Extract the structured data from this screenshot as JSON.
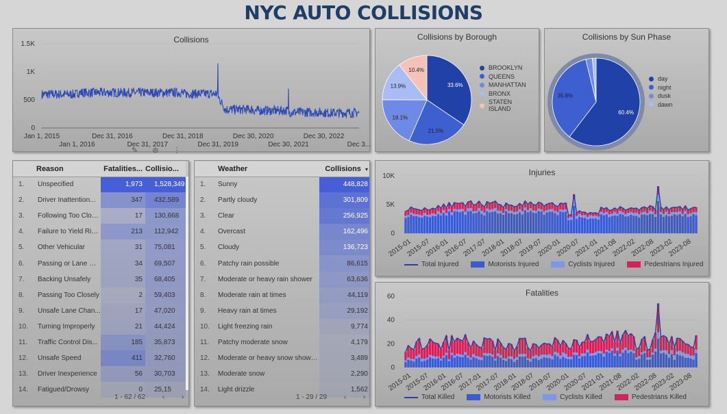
{
  "page_title": "NYC AUTO COLLISIONS",
  "colors": {
    "line": "#2e4bb5",
    "motorists": "#3b5bd0",
    "cyclists": "#7d97e8",
    "pedestrians": "#d0245a"
  },
  "collisions": {
    "title": "Collisions",
    "y_ticks": [
      "1.5K",
      "1K",
      "500",
      "0"
    ],
    "x_ticks_top": [
      "Jan 1, 2015",
      "Dec 31, 2016",
      "Dec 31, 2018",
      "Dec 30, 2020",
      "Dec 30, 2022"
    ],
    "x_ticks_bottom": [
      "Jan 1, 2016",
      "Dec 31, 2017",
      "Dec 31, 2019",
      "Dec 30, 2021",
      "Dec 3..."
    ]
  },
  "borough": {
    "title": "Collisions by Borough",
    "labels": [
      "BROOKLYN",
      "QUEENS",
      "MANHATTAN",
      "BRONX",
      "STATEN ISLAND"
    ],
    "legend_lines": [
      [
        "BROOKLYN"
      ],
      [
        "QUEENS"
      ],
      [
        "MANHATTAN"
      ],
      [
        "BRONX"
      ],
      [
        "STATEN",
        "ISLAND"
      ]
    ],
    "pct": [
      "33.6%",
      "21.5%",
      "18.1%",
      "13.9%",
      "10.4%"
    ]
  },
  "sun": {
    "title": "Collisions by Sun Phase",
    "labels": [
      "day",
      "night",
      "dusk",
      "dawn"
    ],
    "pct": [
      "60.4%",
      "35.8%"
    ]
  },
  "reasons": {
    "headers": [
      "Reason",
      "Fatalities...",
      "Collisio..."
    ],
    "rows": [
      {
        "i": "1.",
        "r": "Unspecified",
        "f": "1,973",
        "c": "1,528,349"
      },
      {
        "i": "2.",
        "r": "Driver Inattention...",
        "f": "347",
        "c": "432,589"
      },
      {
        "i": "3.",
        "r": "Following Too Clos...",
        "f": "17",
        "c": "130,668"
      },
      {
        "i": "4.",
        "r": "Failure to Yield Rig...",
        "f": "213",
        "c": "112,942"
      },
      {
        "i": "5.",
        "r": "Other Vehicular",
        "f": "31",
        "c": "75,081"
      },
      {
        "i": "6.",
        "r": "Passing or Lane Us...",
        "f": "34",
        "c": "69,507"
      },
      {
        "i": "7.",
        "r": "Backing Unsafely",
        "f": "35",
        "c": "68,405"
      },
      {
        "i": "8.",
        "r": "Passing Too Closely",
        "f": "2",
        "c": "59,403"
      },
      {
        "i": "9.",
        "r": "Unsafe Lane Chan...",
        "f": "17",
        "c": "47,020"
      },
      {
        "i": "10.",
        "r": "Turning Improperly",
        "f": "21",
        "c": "44,424"
      },
      {
        "i": "11.",
        "r": "Traffic Control Dis...",
        "f": "185",
        "c": "35,873"
      },
      {
        "i": "12.",
        "r": "Unsafe Speed",
        "f": "411",
        "c": "32,760"
      },
      {
        "i": "13.",
        "r": "Driver Inexperience",
        "f": "56",
        "c": "30,703"
      },
      {
        "i": "14.",
        "r": "Fatigued/Drowsy",
        "f": "0",
        "c": "25,15"
      }
    ],
    "pager": "1 - 62 / 62"
  },
  "weather": {
    "headers": [
      "Weather",
      "Collisions"
    ],
    "sort_icon": "▾",
    "rows": [
      {
        "i": "1.",
        "w": "Sunny",
        "c": "448,828"
      },
      {
        "i": "2.",
        "w": "Partly cloudy",
        "c": "301,809"
      },
      {
        "i": "3.",
        "w": "Clear",
        "c": "256,925"
      },
      {
        "i": "4.",
        "w": "Overcast",
        "c": "162,496"
      },
      {
        "i": "5.",
        "w": "Cloudy",
        "c": "136,723"
      },
      {
        "i": "6.",
        "w": "Patchy rain possible",
        "c": "86,615"
      },
      {
        "i": "7.",
        "w": "Moderate or heavy rain shower",
        "c": "63,636"
      },
      {
        "i": "8.",
        "w": "Moderate rain at times",
        "c": "44,119"
      },
      {
        "i": "9.",
        "w": "Heavy rain at times",
        "c": "29,192"
      },
      {
        "i": "10.",
        "w": "Light freezing rain",
        "c": "9,774"
      },
      {
        "i": "11.",
        "w": "Patchy moderate snow",
        "c": "4,179"
      },
      {
        "i": "12.",
        "w": "Moderate or heavy snow showers",
        "c": "3,489"
      },
      {
        "i": "13.",
        "w": "Moderate snow",
        "c": "2,290"
      },
      {
        "i": "14.",
        "w": "Light drizzle",
        "c": "1,562"
      }
    ],
    "pager": "1 - 29 / 29"
  },
  "injuries": {
    "title": "Injuries",
    "y_ticks": [
      "10K",
      "5K",
      "0"
    ],
    "x_ticks": [
      "2015-01",
      "2015-07",
      "2016-01",
      "2016-07",
      "2017-07",
      "2018-01",
      "2018-07",
      "2019-07",
      "2020-01",
      "2020-07",
      "2021-01",
      "2021-08",
      "2022-02",
      "2022-08",
      "2023-02",
      "2023-08"
    ],
    "legend": [
      "Total Injured",
      "Motorists Injured",
      "Cyclists Injured",
      "Pedestrians Injured"
    ]
  },
  "fatalities": {
    "title": "Fatalities",
    "y_ticks": [
      "60",
      "40",
      "20",
      "0"
    ],
    "x_ticks": [
      "2015-01",
      "2015-07",
      "2016-01",
      "2016-07",
      "2017-01",
      "2017-07",
      "2018-01",
      "2018-07",
      "2019-07",
      "2020-01",
      "2020-07",
      "2021-01",
      "2021-08",
      "2022-02",
      "2022-08",
      "2023-02",
      "2023-08"
    ],
    "legend": [
      "Total Killed",
      "Motorists Killed",
      "Cyclists Killed",
      "Pedestrians Killed"
    ]
  },
  "chart_data": [
    {
      "type": "line",
      "title": "Collisions",
      "x_range": [
        "2015-01-01",
        "2023-12-31"
      ],
      "ylim": [
        0,
        1500
      ],
      "y_ticks": [
        0,
        500,
        1000,
        1500
      ],
      "series": [
        {
          "values_by_year": {
            "2015": 600,
            "2016": 630,
            "2017": 630,
            "2018": 630,
            "2019": 610,
            "2020": 330,
            "2021": 310,
            "2022": 280,
            "2023": 270
          }
        }
      ],
      "spikes": [
        {
          "x": "2019-12-31",
          "y": 1150
        },
        {
          "x": "2021-12-31",
          "y": 700
        }
      ]
    },
    {
      "type": "pie",
      "title": "Collisions by Borough",
      "labels": [
        "BROOKLYN",
        "QUEENS",
        "MANHATTAN",
        "BRONX",
        "STATEN ISLAND"
      ],
      "values": [
        33.6,
        21.5,
        18.1,
        13.9,
        10.4
      ],
      "legend": "right",
      "colors": [
        "#1f41a8",
        "#3d5fcf",
        "#6e8ae6",
        "#a9bcf3",
        "#f5c2b8"
      ]
    },
    {
      "type": "pie",
      "title": "Collisions by Sun Phase",
      "labels": [
        "day",
        "night",
        "dusk",
        "dawn"
      ],
      "values": [
        60.4,
        35.8,
        2.4,
        1.4
      ],
      "legend": "right",
      "colors": [
        "#1f41a8",
        "#3d5fcf",
        "#6e8ae6",
        "#a9bcf3"
      ]
    },
    {
      "type": "bar",
      "title": "Injuries",
      "ylim": [
        0,
        10000
      ],
      "x_range": [
        "2015-01",
        "2023-12"
      ],
      "series": [
        {
          "name": "Total Injured",
          "type": "line",
          "values_by_year": {
            "2015": 4300,
            "2016": 5000,
            "2017": 5100,
            "2018": 5100,
            "2019": 5000,
            "2020": 3600,
            "2021": 4300,
            "2022": 4400,
            "2023": 4400
          }
        },
        {
          "name": "Motorists Injured",
          "type": "bar",
          "values_by_year": {
            "2015": 3000,
            "2016": 3500,
            "2017": 3500,
            "2018": 3600,
            "2019": 3500,
            "2020": 2600,
            "2021": 3100,
            "2022": 3100,
            "2023": 3100
          }
        },
        {
          "name": "Cyclists Injured",
          "type": "bar",
          "values_by_year": {
            "2015": 400,
            "2016": 450,
            "2017": 450,
            "2018": 450,
            "2019": 450,
            "2020": 500,
            "2021": 480,
            "2022": 480,
            "2023": 480
          }
        },
        {
          "name": "Pedestrians Injured",
          "type": "bar",
          "values_by_year": {
            "2015": 900,
            "2016": 1000,
            "2017": 1100,
            "2018": 1000,
            "2019": 1000,
            "2020": 500,
            "2021": 700,
            "2022": 800,
            "2023": 800
          }
        }
      ],
      "spikes": [
        {
          "x": "2020-03",
          "value": 6800
        },
        {
          "x": "2022-10",
          "value": 8200
        }
      ],
      "legend": "bottom"
    },
    {
      "type": "bar",
      "title": "Fatalities",
      "ylim": [
        0,
        60
      ],
      "x_range": [
        "2015-01",
        "2023-12"
      ],
      "series": [
        {
          "name": "Total Killed",
          "type": "line",
          "values_by_year": {
            "2015": 20,
            "2016": 21,
            "2017": 20,
            "2018": 19,
            "2019": 20,
            "2020": 22,
            "2021": 24,
            "2022": 22,
            "2023": 21
          }
        },
        {
          "name": "Motorists Killed",
          "type": "bar",
          "values_by_year": {
            "2015": 7,
            "2016": 8,
            "2017": 8,
            "2018": 7,
            "2019": 8,
            "2020": 10,
            "2021": 11,
            "2022": 10,
            "2023": 9
          }
        },
        {
          "name": "Cyclists Killed",
          "type": "bar",
          "values_by_year": {
            "2015": 2,
            "2016": 2,
            "2017": 2,
            "2018": 2,
            "2019": 3,
            "2020": 2,
            "2021": 2,
            "2022": 2,
            "2023": 3
          }
        },
        {
          "name": "Pedestrians Killed",
          "type": "bar",
          "values_by_year": {
            "2015": 11,
            "2016": 11,
            "2017": 10,
            "2018": 10,
            "2019": 9,
            "2020": 10,
            "2021": 11,
            "2022": 10,
            "2023": 9
          }
        }
      ],
      "spikes": [
        {
          "x": "2022-10",
          "value": 54
        }
      ],
      "legend": "bottom"
    }
  ]
}
